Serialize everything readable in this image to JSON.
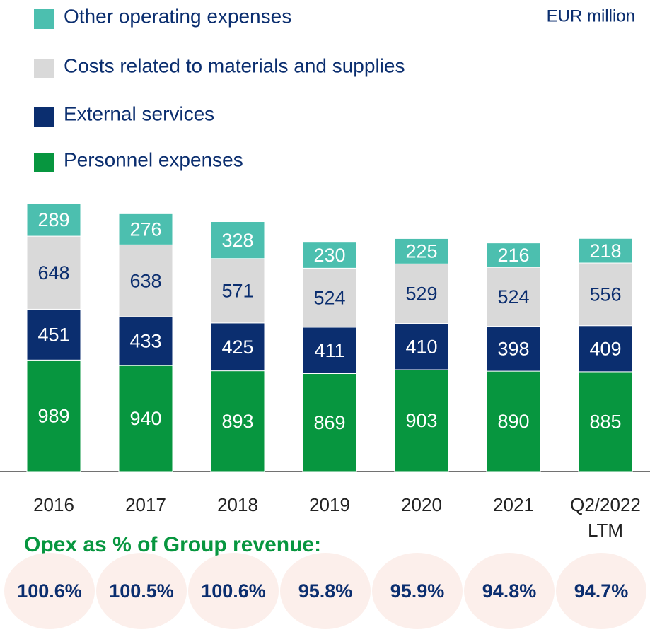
{
  "chart_data": {
    "type": "stacked_bar",
    "unit_label": "EUR million",
    "categories": [
      "2016",
      "2017",
      "2018",
      "2019",
      "2020",
      "2021",
      "Q2/2022 LTM"
    ],
    "series": [
      {
        "name": "Personnel expenses",
        "color": "#07963f",
        "values": [
          989,
          940,
          893,
          869,
          903,
          890,
          885
        ]
      },
      {
        "name": "External services",
        "color": "#0b2e6f",
        "values": [
          451,
          433,
          425,
          411,
          410,
          398,
          409
        ]
      },
      {
        "name": "Costs related to materials and supplies",
        "color": "#d9d9d9",
        "values": [
          648,
          638,
          571,
          524,
          529,
          524,
          556
        ]
      },
      {
        "name": "Other operating expenses",
        "color": "#4cbfaf",
        "values": [
          289,
          276,
          328,
          230,
          225,
          216,
          218
        ]
      }
    ],
    "opex_ratio": {
      "title": "Opex as % of Group revenue:",
      "values": [
        100.6,
        100.5,
        100.6,
        95.8,
        95.9,
        94.8,
        94.7
      ],
      "value_labels": [
        "100.6%",
        "100.5%",
        "100.6%",
        "95.8%",
        "95.9%",
        "94.8%",
        "94.7%"
      ]
    }
  }
}
